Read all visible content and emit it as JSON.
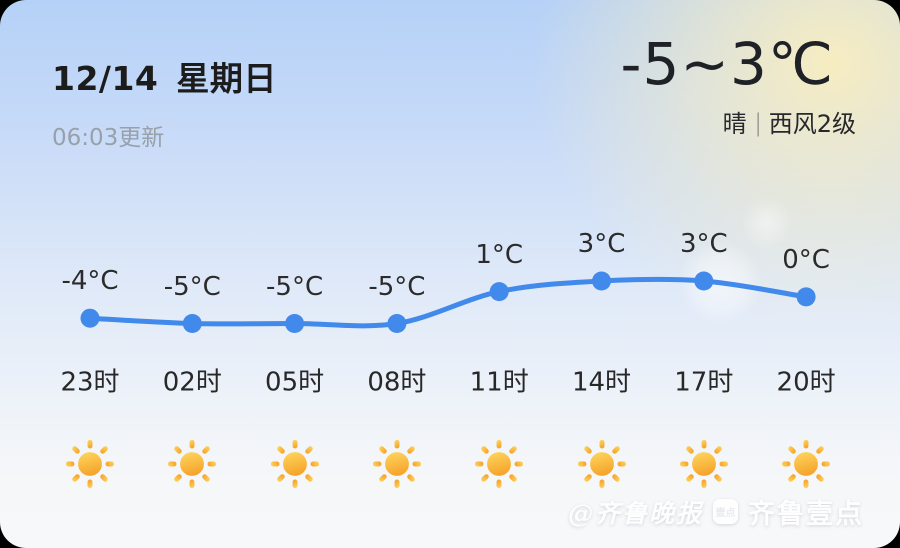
{
  "header": {
    "date": "12/14",
    "weekday": "星期日",
    "updated": "06:03更新",
    "temp_range": "-5~3℃",
    "condition": "晴",
    "separator": "|",
    "wind": "西风2级"
  },
  "chart_data": {
    "type": "line",
    "categories": [
      "23时",
      "02时",
      "05时",
      "08时",
      "11时",
      "14时",
      "17时",
      "20时"
    ],
    "values": [
      -4,
      -5,
      -5,
      -5,
      1,
      3,
      3,
      0
    ],
    "unit": "°C",
    "icons": [
      "sunny",
      "sunny",
      "sunny",
      "sunny",
      "sunny",
      "sunny",
      "sunny",
      "sunny"
    ],
    "ylim": [
      -5,
      3
    ],
    "line_color": "#4189ea",
    "grid": false,
    "legend": "none",
    "title": ""
  },
  "watermark": {
    "at_text": "@齐鲁晚报",
    "badge_text": "壹点",
    "brand_text": "齐鲁壹点"
  },
  "colors": {
    "accent_blue": "#4189ea",
    "sun_light": "#FFD75E",
    "sun_deep": "#F5A52E",
    "sky_top": "#b5d1f7",
    "sky_bottom": "#f7f8f9"
  }
}
